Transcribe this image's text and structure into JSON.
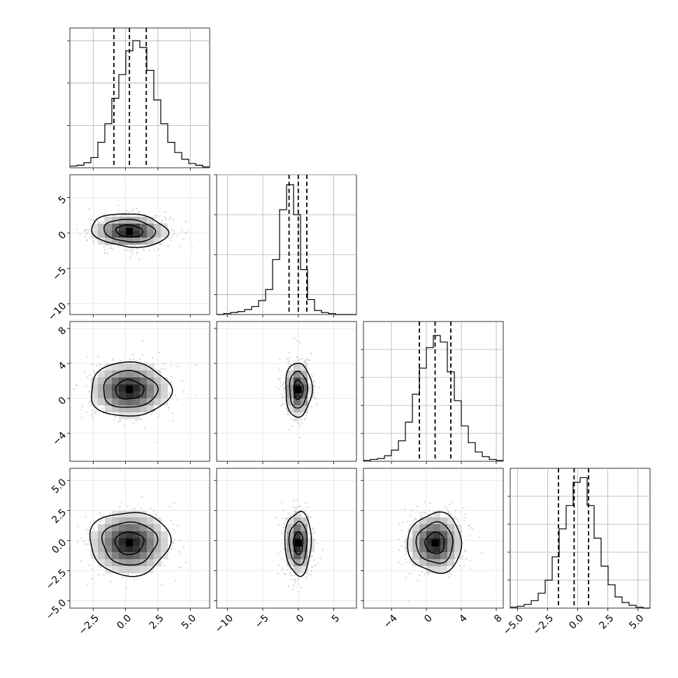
{
  "chart_data": {
    "type": "corner",
    "grid": true,
    "colors": {
      "line": "#000000",
      "grid": "#b0b0b0",
      "points": "#808080",
      "background": "#ffffff"
    },
    "parameters": [
      {
        "range": [
          -4.3,
          6.5
        ],
        "ticks": [
          -2.5,
          0.0,
          2.5,
          5.0
        ],
        "tick_labels": [
          "−2.5",
          "0.0",
          "2.5",
          "5.0"
        ],
        "quantiles": [
          -0.9,
          0.3,
          1.6
        ]
      },
      {
        "range": [
          -11.5,
          8.2
        ],
        "ticks": [
          -10,
          -5,
          0,
          5
        ],
        "tick_labels": [
          "−10",
          "−5",
          "0",
          "5"
        ],
        "quantiles": [
          -1.3,
          0.0,
          1.2
        ]
      },
      {
        "range": [
          -7.2,
          8.8
        ],
        "ticks": [
          -4,
          0,
          4,
          8
        ],
        "tick_labels": [
          "−4",
          "0",
          "4",
          "8"
        ],
        "quantiles": [
          -0.8,
          1.0,
          2.8
        ]
      },
      {
        "range": [
          -5.6,
          6.0
        ],
        "ticks": [
          -5.0,
          -2.5,
          0.0,
          2.5,
          5.0
        ],
        "tick_labels": [
          "−5.0",
          "−2.5",
          "0.0",
          "2.5",
          "5.0"
        ],
        "quantiles": [
          -1.6,
          -0.3,
          0.9
        ]
      }
    ],
    "histograms": [
      {
        "param": 0,
        "bin_start": -4.3,
        "bin_width": 0.54,
        "counts": [
          2,
          3,
          6,
          12,
          30,
          52,
          82,
          110,
          138,
          150,
          142,
          115,
          80,
          52,
          30,
          18,
          10,
          5,
          3,
          1
        ],
        "ylim": [
          0,
          165
        ],
        "ytick_values": [
          50,
          100,
          150
        ]
      },
      {
        "param": 1,
        "bin_start": -11.5,
        "bin_width": 0.985,
        "counts": [
          0,
          1,
          2,
          3,
          5,
          8,
          14,
          25,
          55,
          105,
          130,
          100,
          45,
          15,
          4,
          2,
          1,
          0,
          0,
          0
        ],
        "ylim": [
          0,
          140
        ],
        "ytick_values": [
          20,
          60,
          100,
          140
        ]
      },
      {
        "param": 2,
        "bin_start": -7.2,
        "bin_width": 0.8,
        "counts": [
          1,
          2,
          3,
          6,
          12,
          22,
          42,
          72,
          100,
          122,
          135,
          128,
          96,
          65,
          38,
          20,
          10,
          5,
          2,
          1
        ],
        "ylim": [
          0,
          150
        ],
        "ytick_values": [
          30,
          60,
          90,
          120
        ]
      },
      {
        "param": 3,
        "bin_start": -5.6,
        "bin_width": 0.58,
        "counts": [
          1,
          2,
          4,
          8,
          16,
          30,
          55,
          85,
          110,
          135,
          140,
          110,
          75,
          45,
          25,
          12,
          6,
          3,
          1,
          0
        ],
        "ylim": [
          0,
          150
        ],
        "ytick_values": [
          30,
          60,
          90,
          120
        ]
      }
    ],
    "pairs": [
      {
        "x": 0,
        "y": 1,
        "center": [
          0.3,
          0.2
        ],
        "spread": [
          1.9,
          1.5
        ],
        "skew_y": -0.35
      },
      {
        "x": 0,
        "y": 2,
        "center": [
          0.3,
          1.0
        ],
        "spread": [
          2.0,
          2.0
        ],
        "skew_y": 0
      },
      {
        "x": 1,
        "y": 2,
        "center": [
          0.0,
          1.0
        ],
        "spread": [
          1.2,
          2.0
        ],
        "skew_y": 0
      },
      {
        "x": 0,
        "y": 3,
        "center": [
          0.3,
          -0.2
        ],
        "spread": [
          2.0,
          1.7
        ],
        "skew_y": 0
      },
      {
        "x": 1,
        "y": 3,
        "center": [
          0.0,
          -0.2
        ],
        "spread": [
          1.2,
          1.7
        ],
        "skew_y": 0
      },
      {
        "x": 2,
        "y": 3,
        "center": [
          1.0,
          -0.2
        ],
        "spread": [
          2.0,
          1.6
        ],
        "skew_y": 0
      }
    ]
  }
}
